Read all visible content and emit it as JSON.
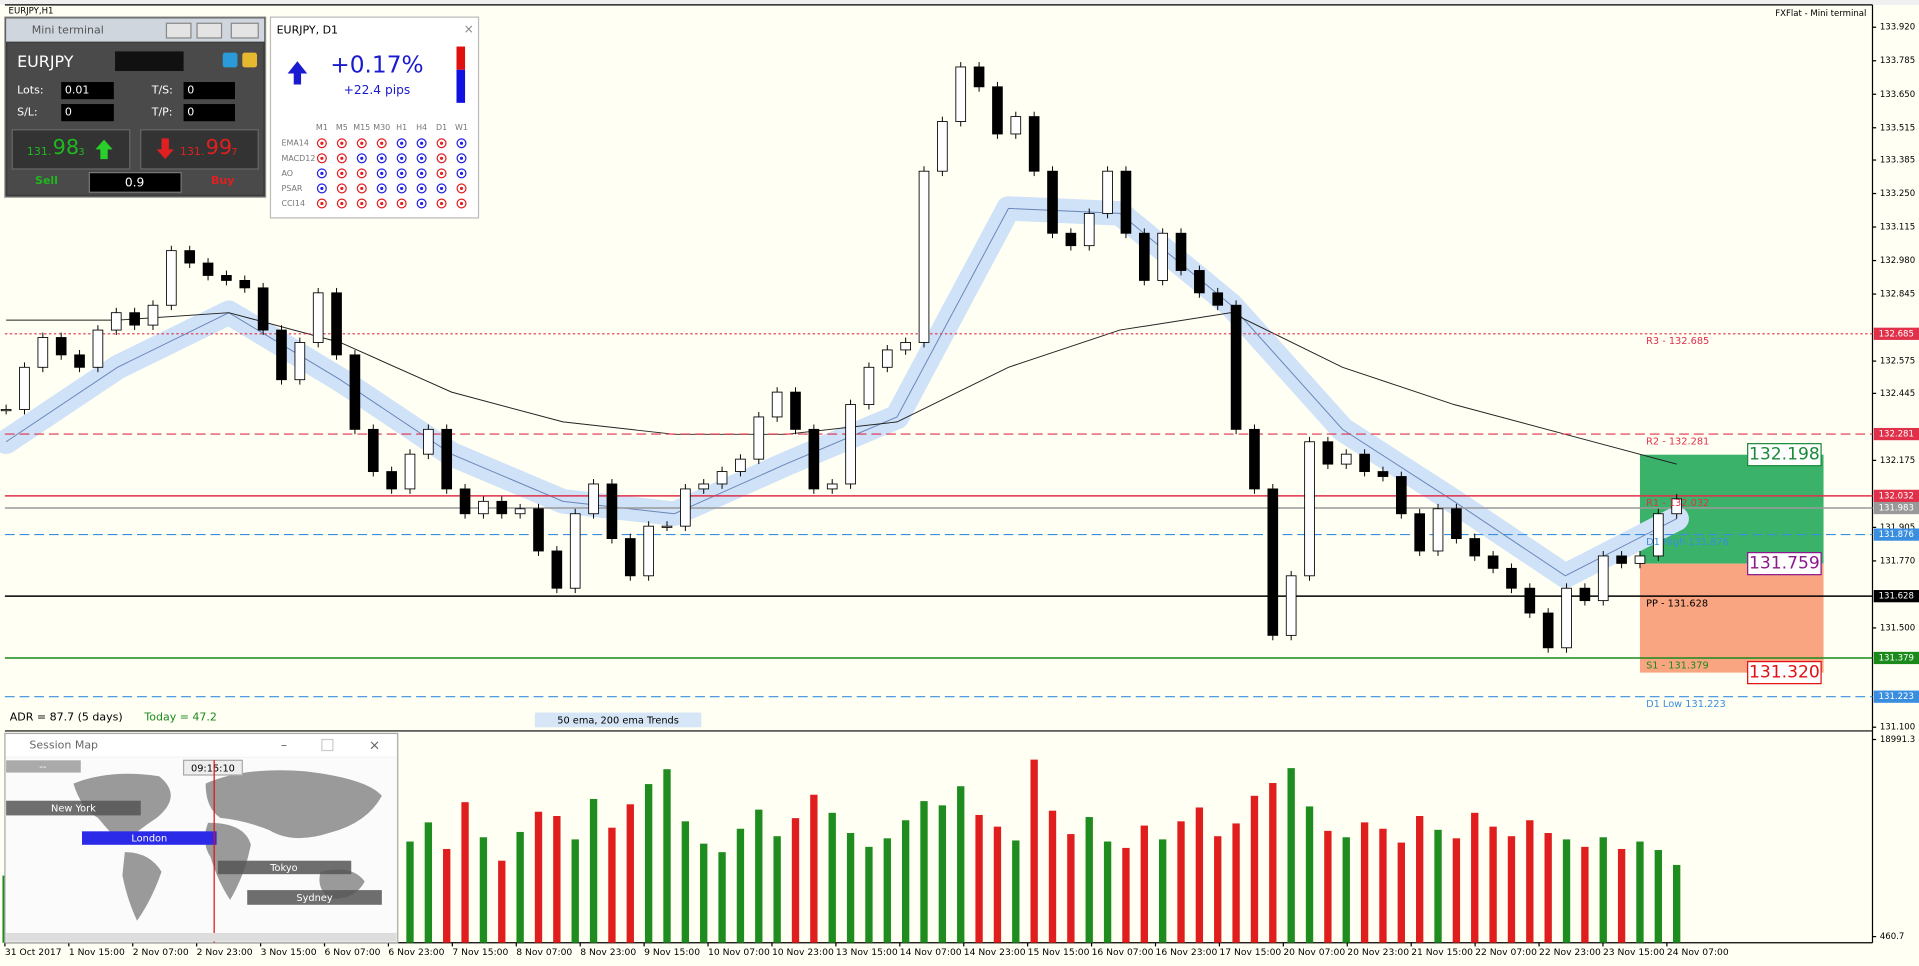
{
  "window": {
    "title": "EURJPY,H1",
    "broker": "FXFlat - Mini terminal"
  },
  "mini_terminal": {
    "title": "Mini terminal",
    "symbol": "EURJPY",
    "lots_label": "Lots:",
    "lots": "0.01",
    "ts_label": "T/S:",
    "ts": "0",
    "sl_label": "S/L:",
    "sl": "0",
    "tp_label": "T/P:",
    "tp": "0",
    "sell_price": {
      "prefix": "131.",
      "big": "98",
      "suffix": "3"
    },
    "buy_price": {
      "prefix": "131.",
      "big": "99",
      "suffix": "7"
    },
    "sell": "Sell",
    "spread": "0.9",
    "buy": "Buy"
  },
  "indicator_panel": {
    "title": "EURJPY, D1",
    "change": "+0.17%",
    "pips": "+22.4 pips",
    "columns": [
      "M1",
      "M5",
      "M15",
      "M30",
      "H1",
      "H4",
      "D1",
      "W1"
    ],
    "rows": [
      {
        "name": "EMA14",
        "signals": [
          "#e02020",
          "#e02020",
          "#e02020",
          "#e02020",
          "#2020e0",
          "#2020e0",
          "#e02020",
          "#2020e0"
        ]
      },
      {
        "name": "MACD12",
        "signals": [
          "#e02020",
          "#e02020",
          "#2020e0",
          "#2020e0",
          "#2020e0",
          "#2020e0",
          "#e02020",
          "#2020e0"
        ]
      },
      {
        "name": "AO",
        "signals": [
          "#2020e0",
          "#e02020",
          "#e02020",
          "#2020e0",
          "#2020e0",
          "#2020e0",
          "#e02020",
          "#2020e0"
        ]
      },
      {
        "name": "PSAR",
        "signals": [
          "#2020e0",
          "#e02020",
          "#e02020",
          "#2020e0",
          "#2020e0",
          "#2020e0",
          "#2020e0",
          "#e02020"
        ]
      },
      {
        "name": "CCI14",
        "signals": [
          "#e02020",
          "#e02020",
          "#e02020",
          "#e02020",
          "#e02020",
          "#2020e0",
          "#e02020",
          "#e02020"
        ]
      }
    ]
  },
  "session_map": {
    "title": "Session Map",
    "status": "--",
    "time": "09:15:10",
    "sessions": [
      "New York",
      "London",
      "Tokyo",
      "Sydney"
    ]
  },
  "chart_data": {
    "type": "candlestick",
    "up_color": "#ffffff",
    "down_color": "#000000",
    "values": [
      132.38,
      132.55,
      132.67,
      132.6,
      132.55,
      132.7,
      132.77,
      132.72,
      132.8,
      133.02,
      132.97,
      132.92,
      132.9,
      132.87,
      132.7,
      132.5,
      132.65,
      132.85,
      132.6,
      132.3,
      132.13,
      132.06,
      132.2,
      132.3,
      132.06,
      131.96,
      132.01,
      131.96,
      131.98,
      131.81,
      131.66,
      131.96,
      132.08,
      131.86,
      131.71,
      131.91,
      131.91,
      132.06,
      132.08,
      132.13,
      132.18,
      132.35,
      132.45,
      132.3,
      132.06,
      132.08,
      132.4,
      132.55,
      132.62,
      132.65,
      133.34,
      133.54,
      133.76,
      133.68,
      133.49,
      133.56,
      133.34,
      133.09,
      133.04,
      133.17,
      133.34,
      133.09,
      132.9,
      133.09,
      132.94,
      132.85,
      132.8,
      132.3,
      132.06,
      131.47,
      131.71,
      132.25,
      132.16,
      132.2,
      132.13,
      132.11,
      131.96,
      131.81,
      131.98,
      131.86,
      131.79,
      131.74,
      131.66,
      131.56,
      131.42,
      131.66,
      131.61,
      131.79,
      131.76,
      131.79,
      131.96,
      132.02
    ],
    "overlays": [
      {
        "color": "#6a86b8",
        "band_color": "#cfe2f8",
        "values": [
          132.25,
          132.55,
          132.77,
          132.5,
          132.2,
          132.01,
          131.96,
          132.16,
          132.35,
          133.19,
          133.17,
          132.8,
          132.3,
          132.01,
          131.71,
          131.94
        ]
      },
      {
        "color": "#222222",
        "values": [
          132.74,
          132.74,
          132.77,
          132.65,
          132.45,
          132.33,
          132.28,
          132.28,
          132.33,
          132.55,
          132.7,
          132.77,
          132.55,
          132.4,
          132.28,
          132.16
        ]
      }
    ],
    "ylim": [
      131.09,
      134.01
    ],
    "yticks": [
      {
        "value": 133.92,
        "label": "133.920"
      },
      133.785,
      {
        "value": 133.65,
        "label": "133.650"
      },
      133.515,
      133.385,
      {
        "value": 133.25,
        "label": "133.250"
      },
      133.115,
      {
        "value": 132.98,
        "label": "132.980"
      },
      132.845,
      132.575,
      132.445,
      132.175,
      131.905,
      {
        "value": 131.77,
        "label": "131.770"
      },
      {
        "value": 131.5,
        "label": "131.500"
      },
      {
        "value": 131.1,
        "label": "131.100"
      }
    ],
    "levels": [
      {
        "value": 132.685,
        "label": "R3 - 132.685",
        "color": "#e0304a",
        "style": "dotted"
      },
      {
        "value": 132.281,
        "label": "R2 - 132.281",
        "color": "#e0304a",
        "style": "dashed"
      },
      {
        "value": 132.032,
        "label": "R1 - 132.032",
        "color": "#e0304a",
        "style": "solid"
      },
      {
        "value": 131.983,
        "color": "#999999",
        "style": "solid"
      },
      {
        "value": 131.876,
        "label": "D1 High 131.876",
        "color": "#3a8ee0",
        "style": "dashed"
      },
      {
        "value": 131.628,
        "label": "PP - 131.628",
        "color": "#000000",
        "style": "solid"
      },
      {
        "value": 131.379,
        "label": "S1 - 131.379",
        "color": "#1a8a1a",
        "style": "solid"
      },
      {
        "value": 131.223,
        "label": "D1 Low 131.223",
        "color": "#3a8ee0",
        "style": "dashed"
      }
    ],
    "zones": [
      {
        "from": 132.198,
        "to": 131.759,
        "color": "#2fae62"
      },
      {
        "from": 131.759,
        "to": {
          "value": 131.32,
          "label": "131.320"
        },
        "color": "#f9a07a"
      }
    ],
    "zone_tags": [
      {
        "value": 132.198,
        "color": "#1a8a3a"
      },
      {
        "value": 131.759,
        "color": "#8a1a8a"
      },
      {
        "value": {
          "value": 131.32,
          "label": "131.320"
        },
        "color": "#e01010"
      }
    ],
    "x_labels": [
      "31 Oct 2017",
      "1 Nov 15:00",
      "2 Nov 07:00",
      "2 Nov 23:00",
      "3 Nov 15:00",
      "6 Nov 07:00",
      "6 Nov 23:00",
      "7 Nov 15:00",
      "8 Nov 07:00",
      "8 Nov 23:00",
      "9 Nov 15:00",
      "10 Nov 07:00",
      "10 Nov 23:00",
      "13 Nov 15:00",
      "14 Nov 07:00",
      "14 Nov 23:00",
      "15 Nov 15:00",
      "16 Nov 07:00",
      "16 Nov 23:00",
      "17 Nov 15:00",
      "20 Nov 07:00",
      "20 Nov 23:00",
      "21 Nov 15:00",
      "22 Nov 07:00",
      "22 Nov 23:00",
      "23 Nov 15:00",
      "24 Nov 07:00"
    ],
    "volume": {
      "ylim": [
        460.7,
        18991.3
      ],
      "yticks": [
        18991.3,
        460.7
      ],
      "up_color": "#1e8c1e",
      "down_color": "#e01e1e",
      "values": [
        6200,
        7800,
        5400,
        9100,
        6800,
        8300,
        7200,
        10400,
        5900,
        8800,
        7400,
        6600,
        9700,
        8100,
        5800,
        7900,
        9300,
        6400,
        8600,
        7100,
        10800,
        12500,
        9400,
        11200,
        8700,
        13100,
        9800,
        7600,
        10300,
        12200,
        11800,
        9600,
        13400,
        10700,
        12900,
        14800,
        16200,
        11300,
        9200,
        8400,
        10600,
        12400,
        9900,
        11600,
        13800,
        12100,
        10200,
        8900,
        9700,
        11400,
        13200,
        12800,
        14600,
        11900,
        10800,
        9500,
        17100,
        12300,
        10100,
        11700,
        9400,
        8800,
        10900,
        9600,
        11300,
        12600,
        9900,
        11100,
        13700,
        14900,
        16300,
        12700,
        10400,
        9800,
        11200,
        10600,
        9300,
        11800,
        10500,
        9700,
        12100,
        10800,
        9900,
        11400,
        10200,
        9600,
        8900,
        9800,
        8700,
        9400,
        8600,
        7200
      ]
    },
    "adr": "ADR = 87.7  (5 days)",
    "today": "Today = 47.2",
    "indicator_label": "50 ema, 200 ema Trends"
  }
}
